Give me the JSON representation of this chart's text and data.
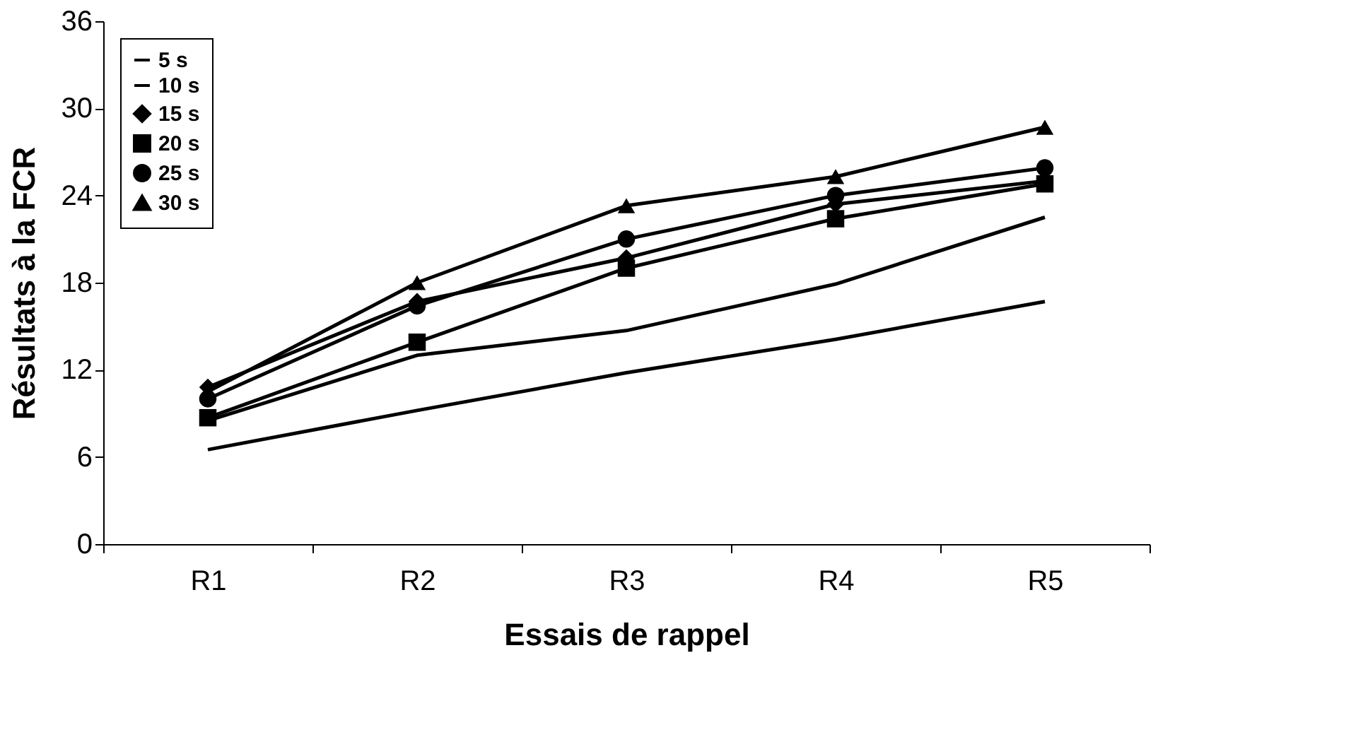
{
  "chart_data": {
    "type": "line",
    "xlabel": "Essais de rappel",
    "ylabel": "Résultats à la FCR",
    "categories": [
      "R1",
      "R2",
      "R3",
      "R4",
      "R5"
    ],
    "series": [
      {
        "name": "5 s",
        "color": "#000000",
        "marker": "none",
        "values": [
          6.5,
          9.2,
          11.8,
          14.1,
          16.7
        ]
      },
      {
        "name": "10 s",
        "color": "#000000",
        "marker": "none",
        "values": [
          8.5,
          13.0,
          14.7,
          17.9,
          22.5
        ]
      },
      {
        "name": "15 s",
        "color": "#000000",
        "marker": "diamond",
        "values": [
          10.8,
          16.7,
          19.7,
          23.4,
          25.0
        ]
      },
      {
        "name": "20 s",
        "color": "#000000",
        "marker": "square",
        "values": [
          8.7,
          13.9,
          19.0,
          22.4,
          24.8
        ]
      },
      {
        "name": "25 s",
        "color": "#000000",
        "marker": "circle",
        "values": [
          10.0,
          16.4,
          21.0,
          24.0,
          25.9
        ]
      },
      {
        "name": "30 s",
        "color": "#000000",
        "marker": "triangle",
        "values": [
          10.5,
          18.0,
          23.3,
          25.3,
          28.7
        ]
      }
    ],
    "ylim": [
      0,
      36
    ],
    "yticks": [
      0,
      6,
      12,
      18,
      24,
      30,
      36
    ],
    "grid": false,
    "legend": "top left",
    "line_style": "solid"
  }
}
